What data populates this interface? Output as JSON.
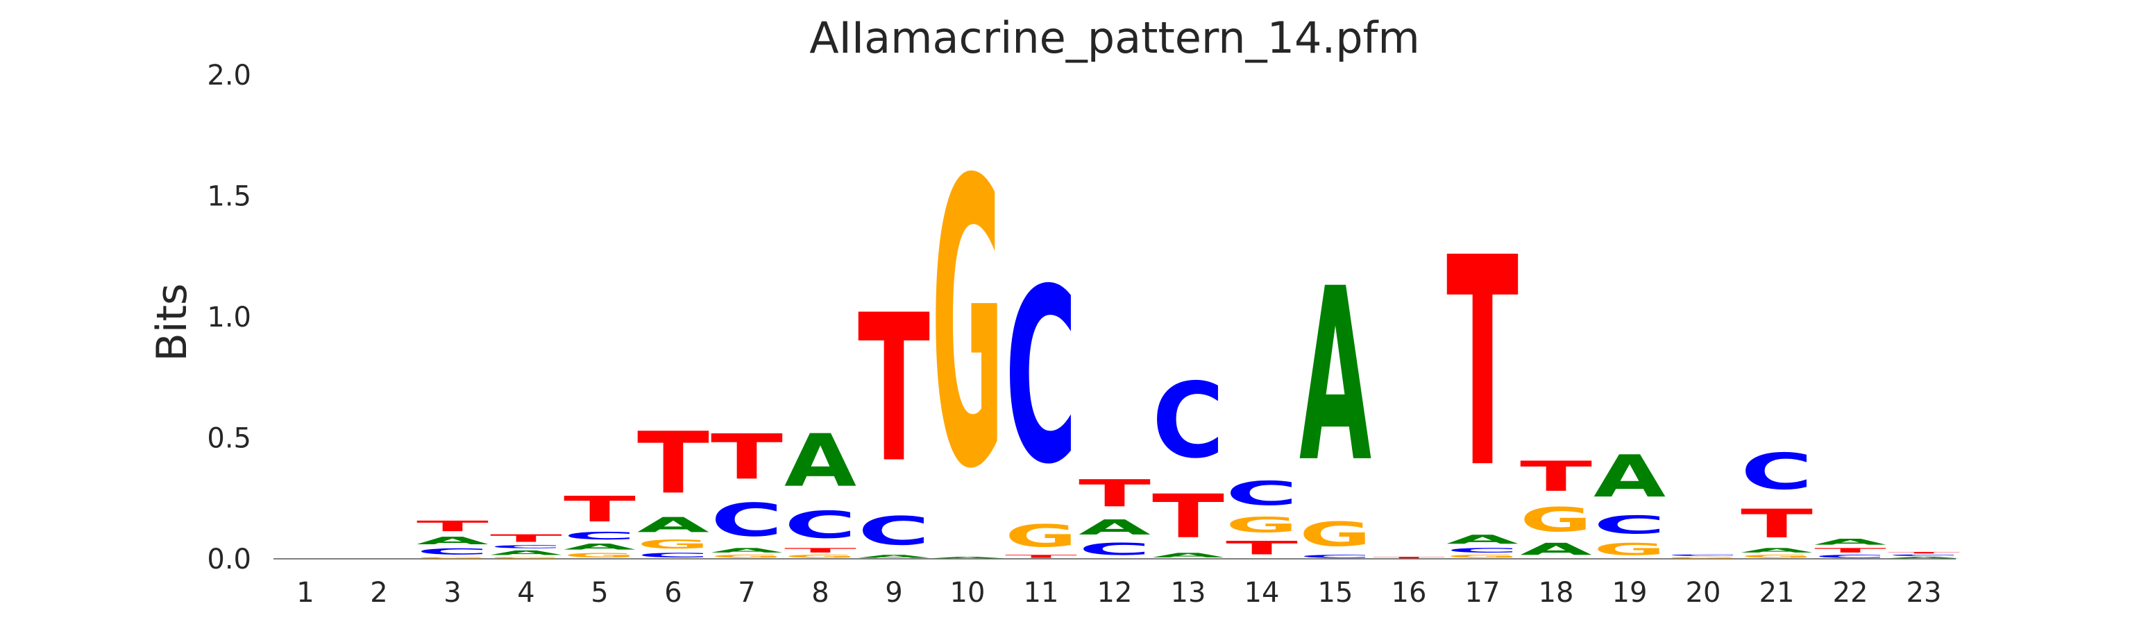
{
  "chart_data": {
    "type": "sequence-logo",
    "title": "AIIamacrine_pattern_14.pfm",
    "ylabel": "Bits",
    "xlabel": "",
    "ylim": [
      0,
      2
    ],
    "yticks": [
      "0.0",
      "0.5",
      "1.0",
      "1.5",
      "2.0"
    ],
    "grid": false,
    "colors": {
      "A": "#008000",
      "C": "#0000ff",
      "G": "#ffa500",
      "T": "#ff0000"
    },
    "positions": [
      {
        "pos": "1",
        "letters": []
      },
      {
        "pos": "2",
        "letters": []
      },
      {
        "pos": "3",
        "letters": [
          {
            "b": "G",
            "h": 0.01
          },
          {
            "b": "C",
            "h": 0.04
          },
          {
            "b": "A",
            "h": 0.05
          },
          {
            "b": "T",
            "h": 0.07
          }
        ]
      },
      {
        "pos": "4",
        "letters": [
          {
            "b": "G",
            "h": 0.01
          },
          {
            "b": "A",
            "h": 0.03
          },
          {
            "b": "C",
            "h": 0.02
          },
          {
            "b": "T",
            "h": 0.05
          }
        ]
      },
      {
        "pos": "5",
        "letters": [
          {
            "b": "G",
            "h": 0.03
          },
          {
            "b": "A",
            "h": 0.04
          },
          {
            "b": "C",
            "h": 0.05
          },
          {
            "b": "T",
            "h": 0.17
          }
        ]
      },
      {
        "pos": "6",
        "letters": [
          {
            "b": "C",
            "h": 0.03
          },
          {
            "b": "G",
            "h": 0.06
          },
          {
            "b": "A",
            "h": 0.1
          },
          {
            "b": "T",
            "h": 0.41
          }
        ]
      },
      {
        "pos": "7",
        "letters": [
          {
            "b": "G",
            "h": 0.02
          },
          {
            "b": "A",
            "h": 0.03
          },
          {
            "b": "C",
            "h": 0.22
          },
          {
            "b": "T",
            "h": 0.3
          }
        ]
      },
      {
        "pos": "8",
        "letters": [
          {
            "b": "G",
            "h": 0.02
          },
          {
            "b": "T",
            "h": 0.03
          },
          {
            "b": "C",
            "h": 0.18
          },
          {
            "b": "A",
            "h": 0.35
          }
        ]
      },
      {
        "pos": "9",
        "letters": [
          {
            "b": "A",
            "h": 0.02
          },
          {
            "b": "C",
            "h": 0.19
          },
          {
            "b": "T",
            "h": 0.98
          }
        ]
      },
      {
        "pos": "10",
        "letters": [
          {
            "b": "A",
            "h": 0.01
          },
          {
            "b": "G",
            "h": 1.9
          }
        ]
      },
      {
        "pos": "11",
        "letters": [
          {
            "b": "T",
            "h": 0.02
          },
          {
            "b": "G",
            "h": 0.15
          },
          {
            "b": "C",
            "h": 1.16
          }
        ]
      },
      {
        "pos": "12",
        "letters": [
          {
            "b": "C",
            "h": 0.08
          },
          {
            "b": "A",
            "h": 0.1
          },
          {
            "b": "T",
            "h": 0.18
          }
        ]
      },
      {
        "pos": "13",
        "letters": [
          {
            "b": "A",
            "h": 0.03
          },
          {
            "b": "T",
            "h": 0.29
          },
          {
            "b": "C",
            "h": 0.5
          }
        ]
      },
      {
        "pos": "14",
        "letters": [
          {
            "b": "T",
            "h": 0.09
          },
          {
            "b": "G",
            "h": 0.1
          },
          {
            "b": "C",
            "h": 0.16
          }
        ]
      },
      {
        "pos": "15",
        "letters": [
          {
            "b": "C",
            "h": 0.02
          },
          {
            "b": "G",
            "h": 0.16
          },
          {
            "b": "A",
            "h": 1.15
          }
        ]
      },
      {
        "pos": "16",
        "letters": [
          {
            "b": "T",
            "h": 0.01
          }
        ]
      },
      {
        "pos": "17",
        "letters": [
          {
            "b": "G",
            "h": 0.02
          },
          {
            "b": "C",
            "h": 0.03
          },
          {
            "b": "A",
            "h": 0.06
          },
          {
            "b": "T",
            "h": 1.39
          }
        ]
      },
      {
        "pos": "18",
        "letters": [
          {
            "b": "A",
            "h": 0.08
          },
          {
            "b": "G",
            "h": 0.16
          },
          {
            "b": "T",
            "h": 0.2
          }
        ]
      },
      {
        "pos": "19",
        "letters": [
          {
            "b": "G",
            "h": 0.08
          },
          {
            "b": "C",
            "h": 0.12
          },
          {
            "b": "A",
            "h": 0.28
          }
        ]
      },
      {
        "pos": "20",
        "letters": [
          {
            "b": "G",
            "h": 0.01
          },
          {
            "b": "C",
            "h": 0.01
          }
        ]
      },
      {
        "pos": "21",
        "letters": [
          {
            "b": "G",
            "h": 0.02
          },
          {
            "b": "A",
            "h": 0.03
          },
          {
            "b": "T",
            "h": 0.19
          },
          {
            "b": "C",
            "h": 0.24
          }
        ]
      },
      {
        "pos": "22",
        "letters": [
          {
            "b": "C",
            "h": 0.02
          },
          {
            "b": "T",
            "h": 0.03
          },
          {
            "b": "A",
            "h": 0.04
          }
        ]
      },
      {
        "pos": "23",
        "letters": [
          {
            "b": "A",
            "h": 0.01
          },
          {
            "b": "C",
            "h": 0.01
          },
          {
            "b": "T",
            "h": 0.01
          }
        ]
      }
    ]
  }
}
